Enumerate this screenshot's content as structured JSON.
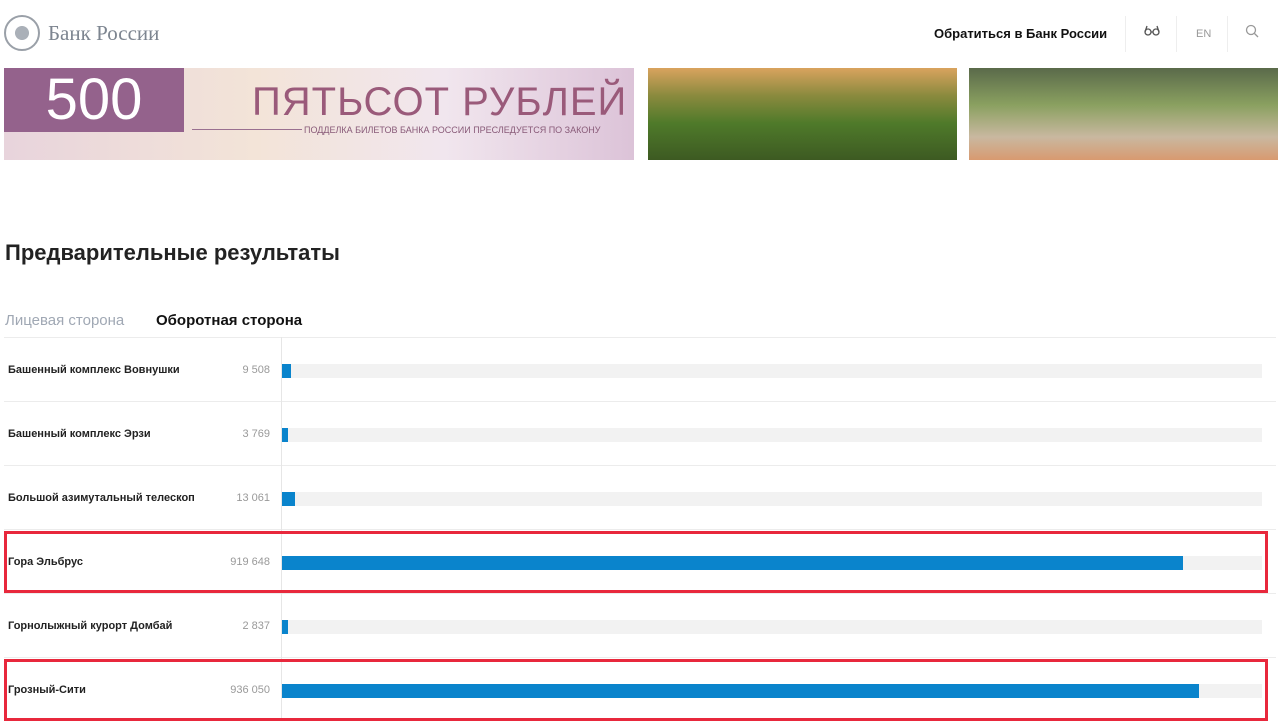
{
  "header": {
    "logo_text": "Банк России",
    "contact_label": "Обратиться в Банк России",
    "lang_label": "EN",
    "icons": [
      "glasses-icon",
      "search-icon"
    ]
  },
  "banner": {
    "denomination": "500",
    "title": "ПЯТЬСОТ РУБЛЕЙ",
    "subtitle": "ПОДДЕЛКА БИЛЕТОВ БАНКА РОССИИ ПРЕСЛЕДУЕТСЯ ПО ЗАКОНУ"
  },
  "page_title": "Предварительные результаты",
  "tabs": [
    {
      "label": "Лицевая сторона",
      "active": false
    },
    {
      "label": "Оборотная сторона",
      "active": true
    }
  ],
  "colors": {
    "bar": "#0a84cc",
    "highlight": "#e8283c"
  },
  "chart_data": {
    "type": "bar",
    "orientation": "horizontal",
    "scale_max": 1000000,
    "categories": [
      "Башенный комплекс Вовнушки",
      "Башенный комплекс Эрзи",
      "Большой азимутальный телескоп",
      "Гора Эльбрус",
      "Горнолыжный курорт Домбай",
      "Грозный-Сити"
    ],
    "values": [
      9508,
      3769,
      13061,
      919648,
      2837,
      936050
    ],
    "labels": [
      "9 508",
      "3 769",
      "13 061",
      "919 648",
      "2 837",
      "936 050"
    ],
    "highlighted": [
      "Гора Эльбрус",
      "Грозный-Сити"
    ]
  }
}
